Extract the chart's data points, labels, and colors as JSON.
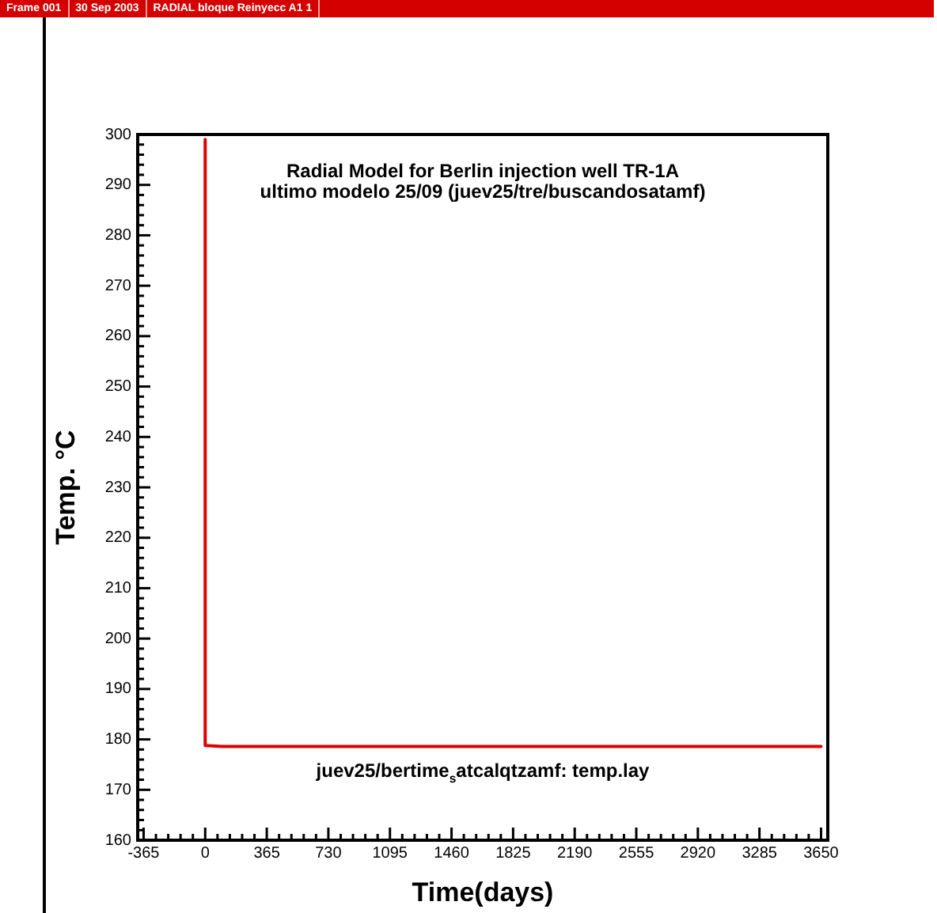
{
  "chart_data": {
    "type": "line",
    "title": "Radial Model for Berlin injection well TR-1A",
    "subtitle": "ultimo modelo 25/09 (juev25/tre/buscandosatamf)",
    "xlabel": "Time(days)",
    "ylabel": "Temp. °C",
    "annotations": [
      "Frame 001",
      "30 Sep 2003",
      "RADIAL bloque Reinyecc A1 1",
      "juev25/bertime$_{s}$atcalqtzamf: temp.lay"
    ],
    "series": [
      {
        "color": "#dd0000",
        "x": [
          0,
          0,
          100,
          3650
        ],
        "values": [
          299,
          178.8,
          178.6,
          178.6
        ]
      }
    ],
    "xlim": [
      -400,
      3690
    ],
    "ylim": [
      160,
      300
    ],
    "xticks": [
      -365,
      {
        "value": -292,
        "label": null
      },
      {
        "value": -219,
        "label": null
      },
      {
        "value": -146,
        "label": null
      },
      {
        "value": -73,
        "label": null
      },
      0,
      {
        "value": 73,
        "label": null
      },
      {
        "value": 146,
        "label": null
      },
      {
        "value": 219,
        "label": null
      },
      {
        "value": 292,
        "label": null
      },
      365,
      {
        "value": 438,
        "label": null
      },
      {
        "value": 511,
        "label": null
      },
      {
        "value": 584,
        "label": null
      },
      {
        "value": 657,
        "label": null
      },
      730,
      {
        "value": 803,
        "label": null
      },
      {
        "value": 876,
        "label": null
      },
      {
        "value": 949,
        "label": null
      },
      {
        "value": 1022,
        "label": null
      },
      1095,
      {
        "value": 1168,
        "label": null
      },
      {
        "value": 1241,
        "label": null
      },
      {
        "value": 1314,
        "label": null
      },
      {
        "value": 1387,
        "label": null
      },
      1460,
      {
        "value": 1533,
        "label": null
      },
      {
        "value": 1606,
        "label": null
      },
      {
        "value": 1679,
        "label": null
      },
      {
        "value": 1752,
        "label": null
      },
      1825,
      {
        "value": 1898,
        "label": null
      },
      {
        "value": 1971,
        "label": null
      },
      {
        "value": 2044,
        "label": null
      },
      {
        "value": 2117,
        "label": null
      },
      2190,
      {
        "value": 2263,
        "label": null
      },
      {
        "value": 2336,
        "label": null
      },
      {
        "value": 2409,
        "label": null
      },
      {
        "value": 2482,
        "label": null
      },
      2555,
      {
        "value": 2628,
        "label": null
      },
      {
        "value": 2701,
        "label": null
      },
      {
        "value": 2774,
        "label": null
      },
      {
        "value": 2847,
        "label": null
      },
      2920,
      {
        "value": 2993,
        "label": null
      },
      {
        "value": 3066,
        "label": null
      },
      {
        "value": 3139,
        "label": null
      },
      {
        "value": 3212,
        "label": null
      },
      3285,
      {
        "value": 3358,
        "label": null
      },
      {
        "value": 3431,
        "label": null
      },
      {
        "value": 3504,
        "label": null
      },
      {
        "value": 3577,
        "label": null
      },
      3650
    ],
    "yticks": [
      160,
      {
        "value": 162,
        "label": null
      },
      {
        "value": 164,
        "label": null
      },
      {
        "value": 166,
        "label": null
      },
      {
        "value": 168,
        "label": null
      },
      170,
      {
        "value": 172,
        "label": null
      },
      {
        "value": 174,
        "label": null
      },
      {
        "value": 176,
        "label": null
      },
      {
        "value": 178,
        "label": null
      },
      180,
      {
        "value": 182,
        "label": null
      },
      {
        "value": 184,
        "label": null
      },
      {
        "value": 186,
        "label": null
      },
      {
        "value": 188,
        "label": null
      },
      190,
      {
        "value": 192,
        "label": null
      },
      {
        "value": 194,
        "label": null
      },
      {
        "value": 196,
        "label": null
      },
      {
        "value": 198,
        "label": null
      },
      200,
      {
        "value": 202,
        "label": null
      },
      {
        "value": 204,
        "label": null
      },
      {
        "value": 206,
        "label": null
      },
      {
        "value": 208,
        "label": null
      },
      210,
      {
        "value": 212,
        "label": null
      },
      {
        "value": 214,
        "label": null
      },
      {
        "value": 216,
        "label": null
      },
      {
        "value": 218,
        "label": null
      },
      220,
      {
        "value": 222,
        "label": null
      },
      {
        "value": 224,
        "label": null
      },
      {
        "value": 226,
        "label": null
      },
      {
        "value": 228,
        "label": null
      },
      230,
      {
        "value": 232,
        "label": null
      },
      {
        "value": 234,
        "label": null
      },
      {
        "value": 236,
        "label": null
      },
      {
        "value": 238,
        "label": null
      },
      240,
      {
        "value": 242,
        "label": null
      },
      {
        "value": 244,
        "label": null
      },
      {
        "value": 246,
        "label": null
      },
      {
        "value": 248,
        "label": null
      },
      250,
      {
        "value": 252,
        "label": null
      },
      {
        "value": 254,
        "label": null
      },
      {
        "value": 256,
        "label": null
      },
      {
        "value": 258,
        "label": null
      },
      260,
      {
        "value": 262,
        "label": null
      },
      {
        "value": 264,
        "label": null
      },
      {
        "value": 266,
        "label": null
      },
      {
        "value": 268,
        "label": null
      },
      270,
      {
        "value": 272,
        "label": null
      },
      {
        "value": 274,
        "label": null
      },
      {
        "value": 276,
        "label": null
      },
      {
        "value": 278,
        "label": null
      },
      280,
      {
        "value": 282,
        "label": null
      },
      {
        "value": 284,
        "label": null
      },
      {
        "value": 286,
        "label": null
      },
      {
        "value": 288,
        "label": null
      },
      290,
      {
        "value": 292,
        "label": null
      },
      {
        "value": 294,
        "label": null
      },
      {
        "value": 296,
        "label": null
      },
      {
        "value": 298,
        "label": null
      },
      300
    ],
    "marker": "none",
    "line_style": "solid"
  }
}
